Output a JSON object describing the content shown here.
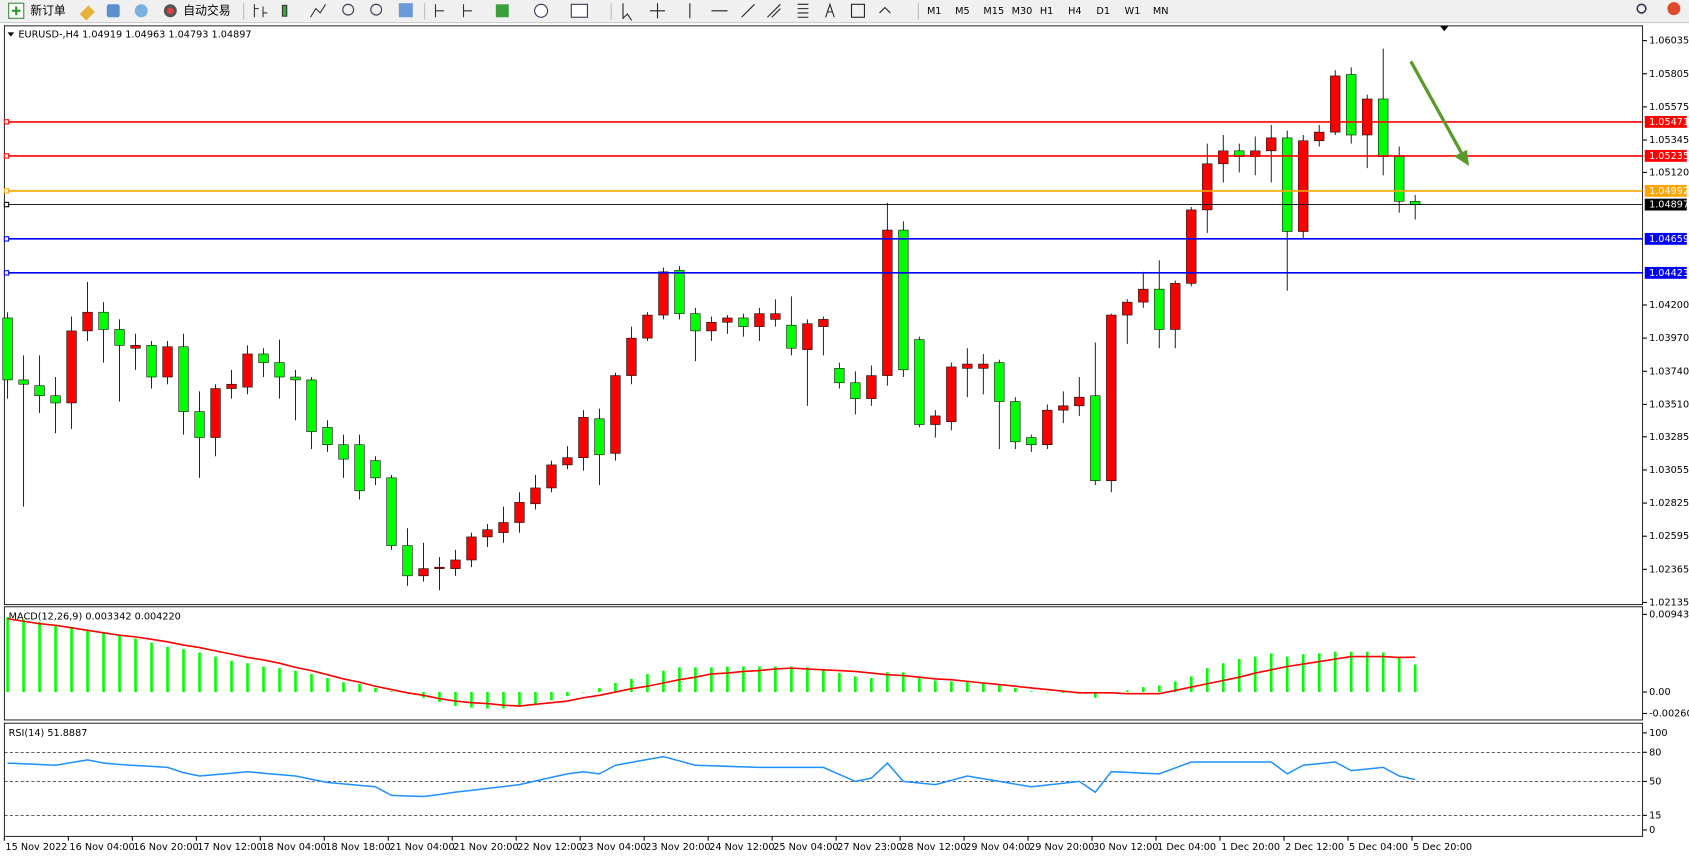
{
  "toolbar": {
    "new_order": "新订单",
    "auto_trading": "自动交易",
    "timeframes": [
      "M1",
      "M5",
      "M15",
      "M30",
      "H1",
      "H4",
      "D1",
      "W1",
      "MN"
    ]
  },
  "chart_data": [
    {
      "type": "candlestick",
      "title": "EURUSD-,H4  1.04919 1.04963 1.04793 1.04897",
      "categories": [
        "15 Nov 2022",
        null,
        null,
        null,
        "16 Nov 04:00",
        null,
        null,
        null,
        "16 Nov 20:00",
        null,
        null,
        null,
        "17 Nov 12:00",
        null,
        null,
        null,
        "18 Nov 04:00",
        null,
        null,
        null,
        "18 Nov 18:00",
        null,
        null,
        null,
        "21 Nov 04:00",
        null,
        null,
        null,
        "21 Nov 20:00",
        null,
        null,
        null,
        "22 Nov 12:00",
        null,
        null,
        null,
        "23 Nov 04:00",
        null,
        null,
        null,
        "23 Nov 20:00",
        null,
        null,
        null,
        "24 Nov 12:00",
        null,
        null,
        null,
        "25 Nov 04:00",
        null,
        null,
        null,
        "27 Nov 23:00",
        null,
        null,
        null,
        "28 Nov 12:00",
        null,
        null,
        null,
        "29 Nov 04:00",
        null,
        null,
        null,
        "29 Nov 20:00",
        null,
        null,
        null,
        "30 Nov 12:00",
        null,
        null,
        null,
        "1 Dec 04:00",
        null,
        null,
        null,
        "1 Dec 20:00",
        null,
        null,
        null,
        "2 Dec 12:00",
        null,
        null,
        null,
        "5 Dec 04:00",
        null,
        null,
        null,
        "5 Dec 20:00"
      ],
      "open": [
        1.0411,
        1.0368,
        1.0364,
        1.0357,
        1.0352,
        1.0402,
        1.0415,
        1.0403,
        1.039,
        1.0392,
        1.037,
        1.0391,
        1.0346,
        1.0328,
        1.0362,
        1.0363,
        1.0386,
        1.038,
        1.037,
        1.0368,
        1.0335,
        1.0323,
        1.0323,
        1.0312,
        1.03,
        1.0253,
        1.0232,
        1.0237,
        1.0237,
        1.0243,
        1.0259,
        1.0262,
        1.0269,
        1.0282,
        1.0293,
        1.0309,
        1.0314,
        1.0341,
        1.0317,
        1.0371,
        1.0397,
        1.0413,
        1.0444,
        1.0414,
        1.0402,
        1.0408,
        1.0411,
        1.0405,
        1.041,
        1.0406,
        1.0389,
        1.0405,
        1.0376,
        1.0366,
        1.0355,
        1.0371,
        1.0472,
        1.0396,
        1.0337,
        1.0339,
        1.0376,
        1.0376,
        1.038,
        1.0353,
        1.0328,
        1.0323,
        1.0347,
        1.035,
        1.0357,
        1.0298,
        1.0413,
        1.0422,
        1.0431,
        1.0403,
        1.0435,
        1.0486,
        1.0518,
        1.0527,
        1.0523,
        1.0527,
        1.0536,
        1.0471,
        1.0534,
        1.054,
        1.058,
        1.0538,
        1.0563,
        1.0523,
        1.04919
      ],
      "high": [
        1.0415,
        1.0385,
        1.0385,
        1.037,
        1.0412,
        1.0436,
        1.0422,
        1.041,
        1.04,
        1.0395,
        1.0395,
        1.04,
        1.036,
        1.0365,
        1.0375,
        1.0392,
        1.039,
        1.0396,
        1.0375,
        1.037,
        1.034,
        1.033,
        1.033,
        1.0315,
        1.0302,
        1.0265,
        1.0255,
        1.0245,
        1.025,
        1.0262,
        1.0268,
        1.028,
        1.029,
        1.0302,
        1.0312,
        1.0322,
        1.0347,
        1.0348,
        1.0373,
        1.0405,
        1.0415,
        1.0446,
        1.0447,
        1.0418,
        1.0412,
        1.0413,
        1.0414,
        1.0418,
        1.0424,
        1.0426,
        1.041,
        1.0412,
        1.038,
        1.0374,
        1.0378,
        1.0491,
        1.0478,
        1.0398,
        1.0347,
        1.038,
        1.039,
        1.0386,
        1.0382,
        1.0356,
        1.033,
        1.0351,
        1.036,
        1.037,
        1.0394,
        1.0414,
        1.0424,
        1.0443,
        1.0451,
        1.0437,
        1.0488,
        1.0532,
        1.0538,
        1.0532,
        1.0537,
        1.0545,
        1.0541,
        1.0538,
        1.0545,
        1.0583,
        1.0585,
        1.0566,
        1.0598,
        1.053,
        1.04963
      ],
      "low": [
        1.0355,
        1.028,
        1.0345,
        1.0331,
        1.0334,
        1.0395,
        1.038,
        1.0353,
        1.0375,
        1.0362,
        1.0365,
        1.033,
        1.03,
        1.0315,
        1.0355,
        1.0358,
        1.037,
        1.0355,
        1.034,
        1.032,
        1.0318,
        1.03,
        1.0285,
        1.0295,
        1.025,
        1.0225,
        1.0228,
        1.0222,
        1.0232,
        1.0238,
        1.0252,
        1.0255,
        1.0262,
        1.0278,
        1.029,
        1.0306,
        1.0305,
        1.0295,
        1.0312,
        1.0365,
        1.0395,
        1.041,
        1.041,
        1.0381,
        1.0395,
        1.04,
        1.0398,
        1.0395,
        1.0405,
        1.0385,
        1.035,
        1.0385,
        1.0362,
        1.0344,
        1.035,
        1.0364,
        1.037,
        1.0335,
        1.0328,
        1.0333,
        1.0356,
        1.0358,
        1.032,
        1.032,
        1.0318,
        1.032,
        1.0338,
        1.0343,
        1.0295,
        1.029,
        1.0393,
        1.0418,
        1.039,
        1.039,
        1.0433,
        1.047,
        1.0505,
        1.0512,
        1.051,
        1.0505,
        1.043,
        1.0466,
        1.053,
        1.0538,
        1.0532,
        1.0515,
        1.051,
        1.0484,
        1.04793
      ],
      "close": [
        1.0368,
        1.0365,
        1.0357,
        1.0352,
        1.0402,
        1.0415,
        1.0403,
        1.0392,
        1.0392,
        1.037,
        1.0391,
        1.0346,
        1.0328,
        1.0362,
        1.0365,
        1.0386,
        1.038,
        1.037,
        1.0368,
        1.0332,
        1.0323,
        1.0313,
        1.0291,
        1.03,
        1.0253,
        1.0232,
        1.0237,
        1.0238,
        1.0243,
        1.0259,
        1.0264,
        1.0269,
        1.0283,
        1.0293,
        1.0309,
        1.0314,
        1.0342,
        1.0316,
        1.0371,
        1.0397,
        1.0413,
        1.0443,
        1.0414,
        1.0402,
        1.0408,
        1.0411,
        1.0405,
        1.0414,
        1.0414,
        1.039,
        1.0407,
        1.041,
        1.0366,
        1.0355,
        1.0371,
        1.0472,
        1.0375,
        1.0337,
        1.0343,
        1.0377,
        1.0379,
        1.0379,
        1.0353,
        1.0325,
        1.0323,
        1.0347,
        1.035,
        1.0356,
        1.0298,
        1.0413,
        1.0422,
        1.0431,
        1.0403,
        1.0435,
        1.0486,
        1.0518,
        1.0527,
        1.0523,
        1.0527,
        1.0536,
        1.0471,
        1.0534,
        1.054,
        1.0579,
        1.0538,
        1.0563,
        1.0523,
        1.0492,
        1.04897
      ],
      "up_color": "#ff0000",
      "down_color": "#00ff00",
      "ylim": [
        1.0212,
        1.0613
      ],
      "yticks": [
        1.06035,
        1.05805,
        1.05575,
        1.05345,
        {
          "value": 1.0512,
          "label": "1.05120"
        },
        {
          "value": 1.042,
          "label": "1.04200"
        },
        {
          "value": 1.0397,
          "label": "1.03970"
        },
        {
          "value": 1.0374,
          "label": "1.03740"
        },
        {
          "value": 1.0351,
          "label": "1.03510"
        },
        1.03285,
        1.03055,
        1.02825,
        1.02595,
        1.02365,
        1.02135
      ],
      "levels": [
        {
          "value": 1.05471,
          "color": "#ff0000"
        },
        {
          "value": 1.05235,
          "color": "#ff0000"
        },
        {
          "value": 1.04992,
          "color": "#ffa500"
        },
        {
          "value": 1.04897,
          "color": "#000000"
        },
        {
          "value": 1.04659,
          "color": "#0000ff"
        },
        {
          "value": 1.04423,
          "color": "#0000ff"
        }
      ]
    },
    {
      "type": "macd",
      "title": "MACD(12,26,9) 0.003342 0.004220",
      "series": [
        {
          "style": "bar",
          "color": "#00ff00",
          "values": [
            0.0091,
            0.0088,
            0.0085,
            0.0082,
            0.0079,
            0.0076,
            0.0073,
            0.007,
            0.0065,
            0.006,
            0.0055,
            0.0052,
            0.0048,
            0.0043,
            0.0038,
            0.0035,
            0.0031,
            0.0029,
            0.0026,
            0.0022,
            0.0017,
            0.0012,
            0.001,
            0.0005,
            0.0001,
            -0.0002,
            -0.0007,
            -0.0012,
            -0.0017,
            -0.0019,
            -0.002,
            -0.002,
            -0.0018,
            -0.0014,
            -0.001,
            -0.0005,
            0,
            0.0005,
            0.0011,
            0.0016,
            0.0022,
            0.0026,
            0.003,
            0.003,
            0.003,
            0.0031,
            0.0031,
            0.0031,
            0.0031,
            0.0031,
            0.003,
            0.0028,
            0.0023,
            0.0019,
            0.0017,
            0.0024,
            0.0024,
            0.0017,
            0.0014,
            0.0013,
            0.0012,
            0.0011,
            0.0008,
            0.0005,
            0.0001,
            0,
            -0.0001,
            -0.0002,
            -0.0007,
            -0.0001,
            0.0002,
            0.0006,
            0.0008,
            0.0013,
            0.0019,
            0.0029,
            0.0035,
            0.004,
            0.0043,
            0.0047,
            0.0043,
            0.0046,
            0.0047,
            0.0049,
            0.0049,
            0.0049,
            0.0048,
            0.0042,
            0.003342
          ]
        },
        {
          "style": "line",
          "color": "#ff0000",
          "values": [
            0.0089,
            0.0086,
            0.0083,
            0.0081,
            0.0078,
            0.0075,
            0.0072,
            0.0069,
            0.0067,
            0.0064,
            0.0061,
            0.0057,
            0.0054,
            0.005,
            0.0046,
            0.0042,
            0.0039,
            0.0035,
            0.003,
            0.0026,
            0.0021,
            0.0016,
            0.0012,
            0.0007,
            0.0003,
            -0.0001,
            -0.0004,
            -0.0008,
            -0.0011,
            -0.0013,
            -0.0014,
            -0.0016,
            -0.0017,
            -0.0015,
            -0.0013,
            -0.0011,
            -0.0007,
            -0.0004,
            0,
            0.0004,
            0.0007,
            0.0011,
            0.0015,
            0.0018,
            0.0022,
            0.0023,
            0.0025,
            0.0026,
            0.0028,
            0.0029,
            0.0028,
            0.0027,
            0.0026,
            0.0025,
            0.0023,
            0.0021,
            0.002,
            0.0018,
            0.0016,
            0.0015,
            0.0013,
            0.0011,
            0.0009,
            0.0007,
            0.0005,
            0.0003,
            0.0001,
            -0.0001,
            -0.0001,
            -0.0001,
            -0.0002,
            -0.0002,
            -0.0002,
            0.0002,
            0.0006,
            0.001,
            0.0014,
            0.0018,
            0.0023,
            0.0027,
            0.0031,
            0.0034,
            0.0037,
            0.004,
            0.0043,
            0.0043,
            0.0043,
            0.0042,
            0.00422
          ]
        }
      ],
      "ylim": [
        -0.002606,
        0.009433
      ],
      "yticks": [
        0.009433,
        {
          "value": 0,
          "label": "0.00"
        },
        -0.002606
      ]
    },
    {
      "type": "line",
      "title": "RSI(14) 51.8887",
      "series": [
        {
          "color": "#1e90ff",
          "values": [
            68.9,
            68.2,
            67.4,
            66.7,
            69.4,
            72.2,
            69,
            67.5,
            66.3,
            65.4,
            64.4,
            58.9,
            55.6,
            57,
            58.5,
            60,
            58.5,
            57,
            55.6,
            52.2,
            48.9,
            47.4,
            45.9,
            44.4,
            35.6,
            35,
            34.4,
            36.6,
            38.9,
            40.8,
            42.8,
            44.7,
            46.7,
            50.4,
            54.1,
            57.8,
            60,
            57.8,
            66.7,
            69.7,
            72.6,
            75.6,
            71.1,
            66.7,
            66.1,
            65.6,
            65,
            64.4,
            64.4,
            64.4,
            64.4,
            64.4,
            57.2,
            50,
            53.3,
            68.9,
            50,
            48.3,
            46.7,
            51.1,
            55.6,
            52.8,
            50,
            47.2,
            44.4,
            46.3,
            48.1,
            50,
            38.9,
            60,
            59.3,
            58.5,
            57.8,
            63.9,
            70,
            70,
            70,
            70,
            70,
            70,
            57.8,
            66.7,
            68.3,
            70,
            61.1,
            62.8,
            64.4,
            55.6,
            51.8887
          ]
        }
      ],
      "ylim": [
        0,
        100
      ],
      "yticks": [
        100,
        80,
        50,
        15,
        0
      ],
      "dashed_levels": [
        80,
        50,
        15
      ]
    }
  ]
}
